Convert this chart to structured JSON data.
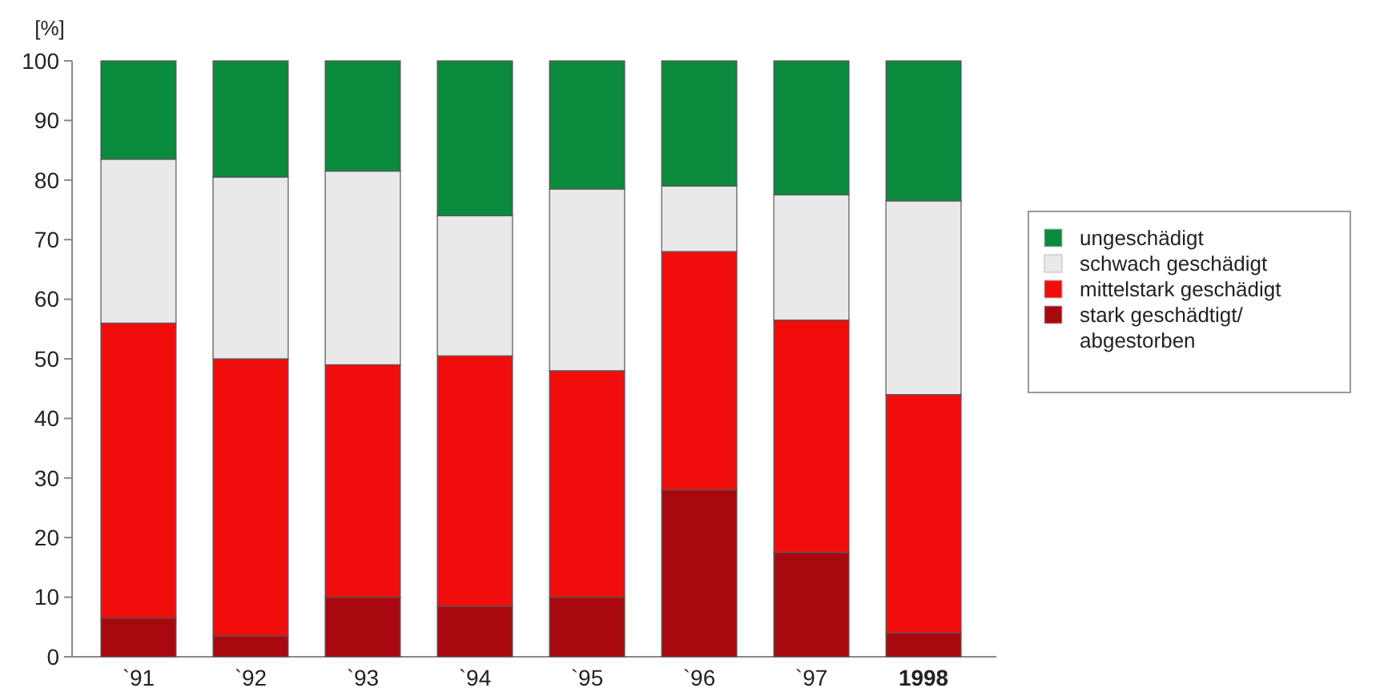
{
  "chart_data": {
    "type": "bar",
    "stacked": true,
    "ylabel": "[%]",
    "categories": [
      "`91",
      "`92",
      "`93",
      "`94",
      "`95",
      "`96",
      "`97",
      "1998"
    ],
    "ylim": [
      0,
      100
    ],
    "yticks": [
      0,
      10,
      20,
      30,
      40,
      50,
      60,
      70,
      80,
      90,
      100
    ],
    "legend": "right",
    "grid": false,
    "series": [
      {
        "name": "stark geschädtigt/ abgestorben",
        "color": "#a8090f",
        "values": [
          6.5,
          3.5,
          10,
          8.5,
          10,
          28,
          17.5,
          4
        ]
      },
      {
        "name": "mittelstark geschädigt",
        "color": "#f20d0d",
        "values": [
          49.5,
          46.5,
          39,
          42,
          38,
          40,
          39,
          40
        ]
      },
      {
        "name": "schwach geschädigt",
        "color": "#e8e9e8",
        "values": [
          27.5,
          30.5,
          32.5,
          23.5,
          30.5,
          11,
          21,
          32.5
        ]
      },
      {
        "name": "ungeschädigt",
        "color": "#0a8a3c",
        "values": [
          16.5,
          19.5,
          18.5,
          26,
          21.5,
          21,
          22.5,
          23.5
        ]
      }
    ]
  }
}
